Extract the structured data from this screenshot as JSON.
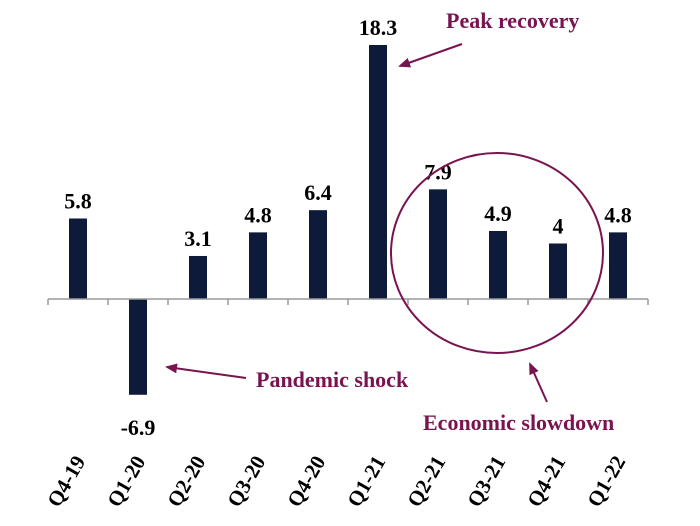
{
  "chart_data": {
    "type": "bar",
    "categories": [
      "Q4-19",
      "Q1-20",
      "Q2-20",
      "Q3-20",
      "Q4-20",
      "Q1-21",
      "Q2-21",
      "Q3-21",
      "Q4-21",
      "Q1-22"
    ],
    "values": [
      5.8,
      -6.9,
      3.1,
      4.8,
      6.4,
      18.3,
      7.9,
      4.9,
      4,
      4.8
    ],
    "value_labels": [
      "5.8",
      "-6.9",
      "3.1",
      "4.8",
      "6.4",
      "18.3",
      "7.9",
      "4.9",
      "4",
      "4.8"
    ],
    "title": "",
    "xlabel": "",
    "ylabel": "",
    "ylim": [
      -6.9,
      18.3
    ],
    "grid": false,
    "bar_color": "#0d1a3a",
    "annotations": [
      {
        "text": "Peak recovery",
        "target": "Q1-21"
      },
      {
        "text": "Pandemic shock",
        "target": "Q1-20"
      },
      {
        "text": "Economic slowdown",
        "target": [
          "Q2-21",
          "Q3-21",
          "Q4-21"
        ]
      }
    ],
    "annotation_color": "#7a1450"
  }
}
